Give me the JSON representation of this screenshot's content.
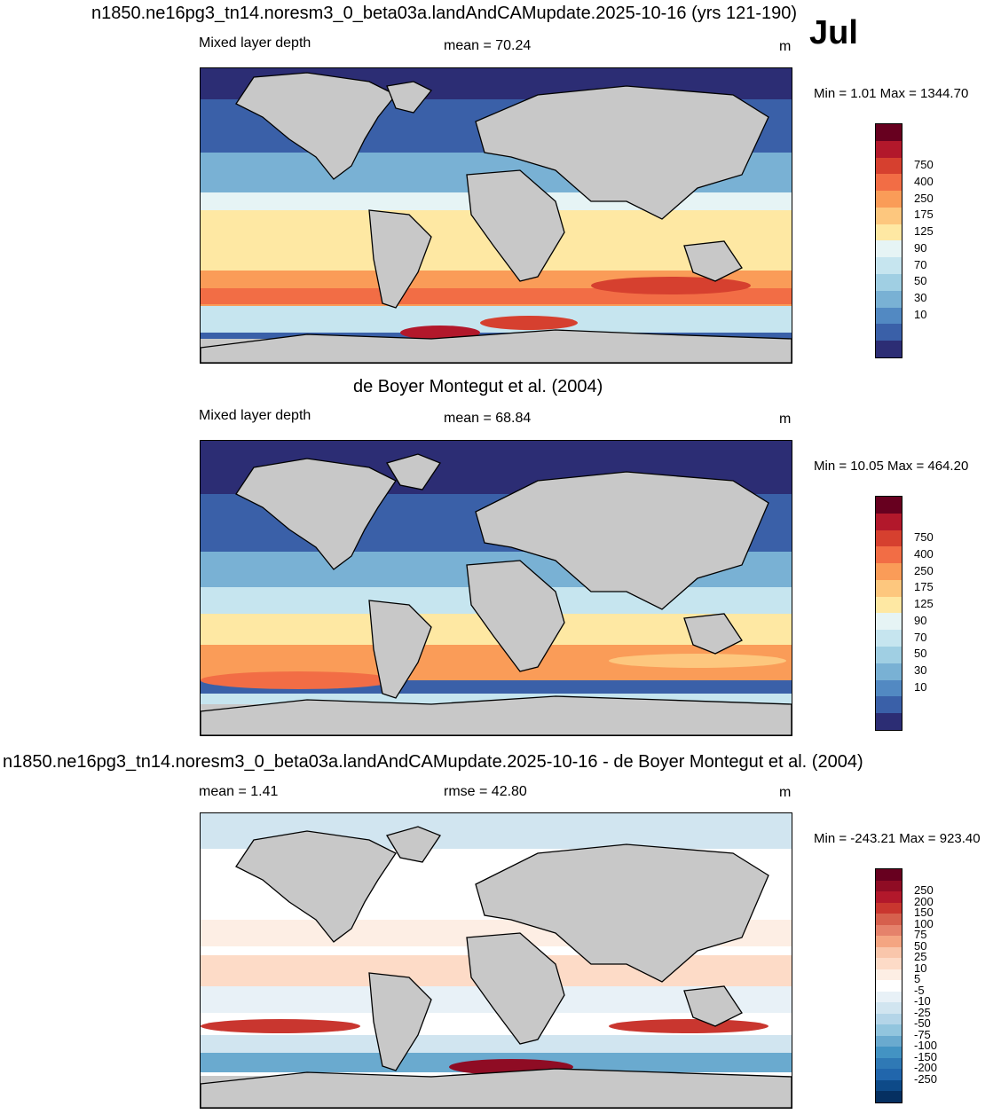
{
  "header": {
    "title": "n1850.ne16pg3_tn14.noresm3_0_beta03a.landAndCAMupdate.2025-10-16 (yrs 121-190)",
    "month": "Jul"
  },
  "panels": [
    {
      "id": "model",
      "left_label": "Mixed layer depth",
      "center_label": "mean =  70.24",
      "unit": "m",
      "minmax": "Min =    1.01 Max = 1344.70",
      "colorbar": {
        "ticks": [
          "750",
          "400",
          "250",
          "175",
          "125",
          "90",
          "70",
          "50",
          "30",
          "10"
        ],
        "colors": [
          "#67001f",
          "#b2182b",
          "#d6402f",
          "#f26d45",
          "#fa9c58",
          "#fdc77e",
          "#fee8a3",
          "#e6f4f5",
          "#c6e5ef",
          "#a0cfe3",
          "#79b1d4",
          "#5289c2",
          "#3a60a8",
          "#2c2d74"
        ]
      }
    },
    {
      "id": "obs",
      "title": "de Boyer Montegut et al. (2004)",
      "left_label": "Mixed layer depth",
      "center_label": "mean =  68.84",
      "unit": "m",
      "minmax": "Min =  10.05 Max = 464.20",
      "colorbar": {
        "ticks": [
          "750",
          "400",
          "250",
          "175",
          "125",
          "90",
          "70",
          "50",
          "30",
          "10"
        ],
        "colors": [
          "#67001f",
          "#b2182b",
          "#d6402f",
          "#f26d45",
          "#fa9c58",
          "#fdc77e",
          "#fee8a3",
          "#e6f4f5",
          "#c6e5ef",
          "#a0cfe3",
          "#79b1d4",
          "#5289c2",
          "#3a60a8",
          "#2c2d74"
        ]
      }
    },
    {
      "id": "diff",
      "title": "n1850.ne16pg3_tn14.noresm3_0_beta03a.landAndCAMupdate.2025-10-16 - de Boyer Montegut et al. (2004)",
      "left_label": "mean =   1.41",
      "center_label": "rmse =  42.80",
      "unit": "m",
      "minmax": "Min = -243.21 Max = 923.40",
      "colorbar": {
        "ticks": [
          "250",
          "200",
          "150",
          "100",
          "75",
          "50",
          "25",
          "10",
          "5",
          "-5",
          "-10",
          "-25",
          "-50",
          "-75",
          "-100",
          "-150",
          "-200",
          "-250"
        ],
        "colors": [
          "#67001f",
          "#8f0c24",
          "#b2182b",
          "#c9362f",
          "#d6604d",
          "#e5826b",
          "#f4a582",
          "#f9c6ab",
          "#fddbc7",
          "#fdeee4",
          "#ffffff",
          "#e8f1f7",
          "#d1e5f0",
          "#b4d5e8",
          "#92c5de",
          "#6aaacf",
          "#4393c3",
          "#2f79b5",
          "#2166ac",
          "#0d4a88",
          "#053061"
        ]
      }
    }
  ]
}
